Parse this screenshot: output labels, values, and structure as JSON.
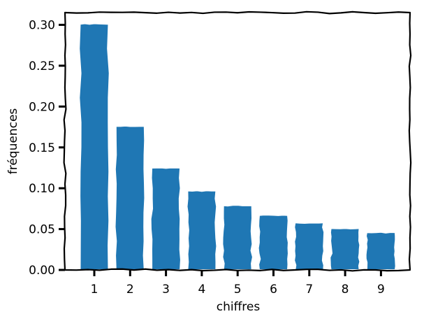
{
  "chart_data": {
    "type": "bar",
    "title": "",
    "xlabel": "chiffres",
    "ylabel": "fréquences",
    "categories": [
      "1",
      "2",
      "3",
      "4",
      "5",
      "6",
      "7",
      "8",
      "9"
    ],
    "values": [
      0.301,
      0.176,
      0.125,
      0.097,
      0.079,
      0.067,
      0.058,
      0.051,
      0.046
    ],
    "ylim": [
      0,
      0.315
    ],
    "yticks": [
      0.0,
      0.05,
      0.1,
      0.15,
      0.2,
      0.25,
      0.3
    ],
    "ytick_labels": [
      "0.00",
      "0.05",
      "0.10",
      "0.15",
      "0.20",
      "0.25",
      "0.30"
    ],
    "bar_color": "#1f77b4",
    "grid": false,
    "legend": "none"
  }
}
